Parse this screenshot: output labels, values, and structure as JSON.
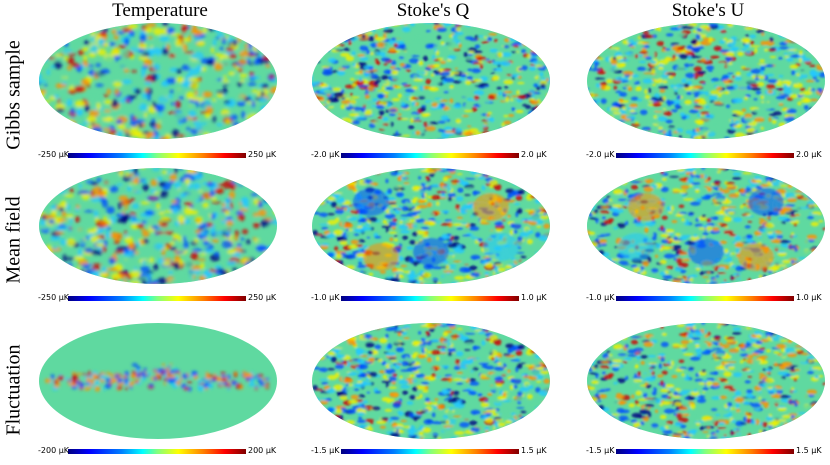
{
  "columns": [
    "Temperature",
    "Stoke's Q",
    "Stoke's U"
  ],
  "rows": [
    "Gibbs sample",
    "Mean field",
    "Fluctuation"
  ],
  "colorbars": [
    [
      {
        "min": "-250 μK",
        "max": "250 μK"
      },
      {
        "min": "-2.0 μK",
        "max": "2.0 μK"
      },
      {
        "min": "-2.0 μK",
        "max": "2.0 μK"
      }
    ],
    [
      {
        "min": "-250 μK",
        "max": "250 μK"
      },
      {
        "min": "-1.0 μK",
        "max": "1.0 μK"
      },
      {
        "min": "-1.0 μK",
        "max": "1.0 μK"
      }
    ],
    [
      {
        "min": "-200 μK",
        "max": "200 μK"
      },
      {
        "min": "-1.5 μK",
        "max": "1.5 μK"
      },
      {
        "min": "-1.5 μK",
        "max": "1.5 μK"
      }
    ]
  ],
  "colors": {
    "map_base": "#5fd9a0",
    "deep_blue": "#00007f",
    "blue": "#0050ff",
    "cyan": "#20c8ff",
    "yellow": "#f0f000",
    "orange": "#ff9000",
    "red": "#d00000"
  }
}
